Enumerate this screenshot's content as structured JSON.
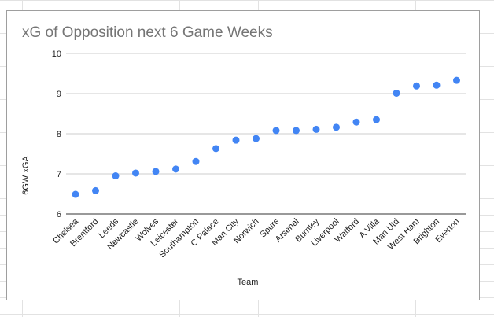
{
  "chart_data": {
    "type": "scatter",
    "title": "xG of Opposition next 6 Game Weeks",
    "xlabel": "Team",
    "ylabel": "6GW xGA",
    "ylim": [
      6,
      10
    ],
    "yticks": [
      "6",
      "7",
      "8",
      "9",
      "10"
    ],
    "grid": true,
    "legend": "none",
    "point_color": "#4285f4",
    "categories": [
      "Chelsea",
      "Brentford",
      "Leeds",
      "Newcastle",
      "Wolves",
      "Leicester",
      "Southampton",
      "C Palace",
      "Man City",
      "Norwich",
      "Spurs",
      "Arsenal",
      "Burnley",
      "Liverpool",
      "Watford",
      "A Villa",
      "Man Utd",
      "West Ham",
      "Brighton",
      "Everton"
    ],
    "values": [
      6.49,
      6.58,
      6.95,
      7.02,
      7.06,
      7.12,
      7.31,
      7.63,
      7.84,
      7.88,
      8.08,
      8.08,
      8.11,
      8.16,
      8.29,
      8.35,
      9.01,
      9.19,
      9.21,
      9.33
    ]
  }
}
